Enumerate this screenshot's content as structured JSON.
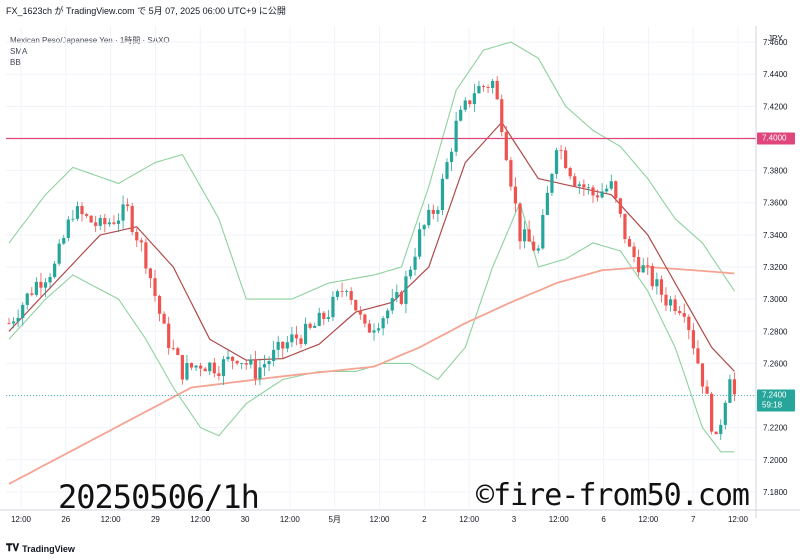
{
  "header": {
    "publish_line": "FX_1623ch が TradingView.com で 5月 07, 2025 06:00 UTC+9 に公開",
    "symbol_line": "Mexican Peso/Japanese Yen · 1時間 · SAXO",
    "indicator_1": "SMA",
    "indicator_2": "BB"
  },
  "overlay": {
    "left_text": "20250506/1h",
    "right_text": "©fire-from50.com"
  },
  "footer": {
    "brand": "TradingView",
    "logo": "tv-logo-icon"
  },
  "colors": {
    "up": "#26a69a",
    "down": "#ef5350",
    "bb": "#8fd19e",
    "sma_fast": "#b04a4a",
    "sma_slow": "#f5a493",
    "hline": "#e0457b",
    "last_price": "#26a69a"
  },
  "chart_data": {
    "type": "candlestick",
    "yaxis_unit": "JPY",
    "ylim": [
      7.17,
      7.47
    ],
    "y_ticks": [
      "7.4600",
      "7.4400",
      "7.4200",
      "7.4000",
      "7.3800",
      "7.3600",
      "7.3400",
      "7.3200",
      "7.3000",
      "7.2800",
      "7.2600",
      "7.2400",
      "7.2200",
      "7.2000",
      "7.1800"
    ],
    "x_ticks": [
      "12:00",
      "26",
      "12:00",
      "29",
      "12:00",
      "30",
      "12:00",
      "5月",
      "12:00",
      "2",
      "12:00",
      "3",
      "12:00",
      "6",
      "12:00",
      "7",
      "12:00"
    ],
    "horizontal_line": {
      "value": 7.4,
      "label": "7.4000"
    },
    "last_price": {
      "value": 7.24,
      "label": "7.2400",
      "countdown": "59:18"
    },
    "bars_count": 160,
    "anchors": [
      [
        0,
        7.285
      ],
      [
        6,
        7.31
      ],
      [
        10,
        7.32
      ],
      [
        14,
        7.355
      ],
      [
        20,
        7.345
      ],
      [
        26,
        7.355
      ],
      [
        30,
        7.325
      ],
      [
        34,
        7.28
      ],
      [
        38,
        7.255
      ],
      [
        42,
        7.26
      ],
      [
        46,
        7.258
      ],
      [
        50,
        7.265
      ],
      [
        54,
        7.255
      ],
      [
        58,
        7.265
      ],
      [
        62,
        7.275
      ],
      [
        66,
        7.28
      ],
      [
        70,
        7.292
      ],
      [
        74,
        7.31
      ],
      [
        78,
        7.28
      ],
      [
        82,
        7.29
      ],
      [
        86,
        7.302
      ],
      [
        90,
        7.34
      ],
      [
        94,
        7.36
      ],
      [
        98,
        7.408
      ],
      [
        102,
        7.43
      ],
      [
        106,
        7.435
      ],
      [
        108,
        7.41
      ],
      [
        112,
        7.34
      ],
      [
        116,
        7.33
      ],
      [
        120,
        7.398
      ],
      [
        124,
        7.375
      ],
      [
        128,
        7.365
      ],
      [
        132,
        7.37
      ],
      [
        136,
        7.33
      ],
      [
        140,
        7.315
      ],
      [
        144,
        7.3
      ],
      [
        148,
        7.295
      ],
      [
        152,
        7.25
      ],
      [
        155,
        7.21
      ],
      [
        158,
        7.255
      ],
      [
        159,
        7.24
      ]
    ],
    "sma_fast_anchors": [
      [
        0,
        7.28
      ],
      [
        10,
        7.31
      ],
      [
        20,
        7.34
      ],
      [
        28,
        7.345
      ],
      [
        36,
        7.32
      ],
      [
        44,
        7.275
      ],
      [
        52,
        7.262
      ],
      [
        60,
        7.263
      ],
      [
        68,
        7.272
      ],
      [
        76,
        7.292
      ],
      [
        84,
        7.298
      ],
      [
        92,
        7.32
      ],
      [
        100,
        7.385
      ],
      [
        108,
        7.41
      ],
      [
        116,
        7.375
      ],
      [
        124,
        7.37
      ],
      [
        132,
        7.365
      ],
      [
        140,
        7.34
      ],
      [
        148,
        7.3
      ],
      [
        154,
        7.27
      ],
      [
        159,
        7.255
      ]
    ],
    "sma_slow_anchors": [
      [
        0,
        7.185
      ],
      [
        20,
        7.215
      ],
      [
        40,
        7.245
      ],
      [
        60,
        7.252
      ],
      [
        80,
        7.258
      ],
      [
        90,
        7.27
      ],
      [
        100,
        7.285
      ],
      [
        110,
        7.298
      ],
      [
        120,
        7.31
      ],
      [
        130,
        7.318
      ],
      [
        140,
        7.32
      ],
      [
        150,
        7.318
      ],
      [
        159,
        7.316
      ]
    ],
    "bb_upper_anchors": [
      [
        0,
        7.335
      ],
      [
        8,
        7.365
      ],
      [
        14,
        7.382
      ],
      [
        24,
        7.372
      ],
      [
        32,
        7.385
      ],
      [
        38,
        7.39
      ],
      [
        46,
        7.35
      ],
      [
        52,
        7.3
      ],
      [
        62,
        7.3
      ],
      [
        70,
        7.31
      ],
      [
        80,
        7.315
      ],
      [
        86,
        7.32
      ],
      [
        92,
        7.37
      ],
      [
        98,
        7.43
      ],
      [
        104,
        7.455
      ],
      [
        110,
        7.46
      ],
      [
        116,
        7.45
      ],
      [
        122,
        7.42
      ],
      [
        128,
        7.405
      ],
      [
        134,
        7.395
      ],
      [
        140,
        7.375
      ],
      [
        146,
        7.35
      ],
      [
        152,
        7.335
      ],
      [
        159,
        7.305
      ]
    ],
    "bb_lower_anchors": [
      [
        0,
        7.275
      ],
      [
        8,
        7.3
      ],
      [
        14,
        7.315
      ],
      [
        24,
        7.3
      ],
      [
        30,
        7.275
      ],
      [
        36,
        7.245
      ],
      [
        42,
        7.22
      ],
      [
        46,
        7.215
      ],
      [
        52,
        7.235
      ],
      [
        60,
        7.25
      ],
      [
        68,
        7.255
      ],
      [
        76,
        7.255
      ],
      [
        82,
        7.26
      ],
      [
        88,
        7.26
      ],
      [
        94,
        7.25
      ],
      [
        100,
        7.27
      ],
      [
        106,
        7.32
      ],
      [
        112,
        7.36
      ],
      [
        116,
        7.32
      ],
      [
        122,
        7.325
      ],
      [
        128,
        7.335
      ],
      [
        134,
        7.33
      ],
      [
        140,
        7.305
      ],
      [
        146,
        7.27
      ],
      [
        152,
        7.22
      ],
      [
        156,
        7.205
      ],
      [
        159,
        7.205
      ]
    ]
  }
}
